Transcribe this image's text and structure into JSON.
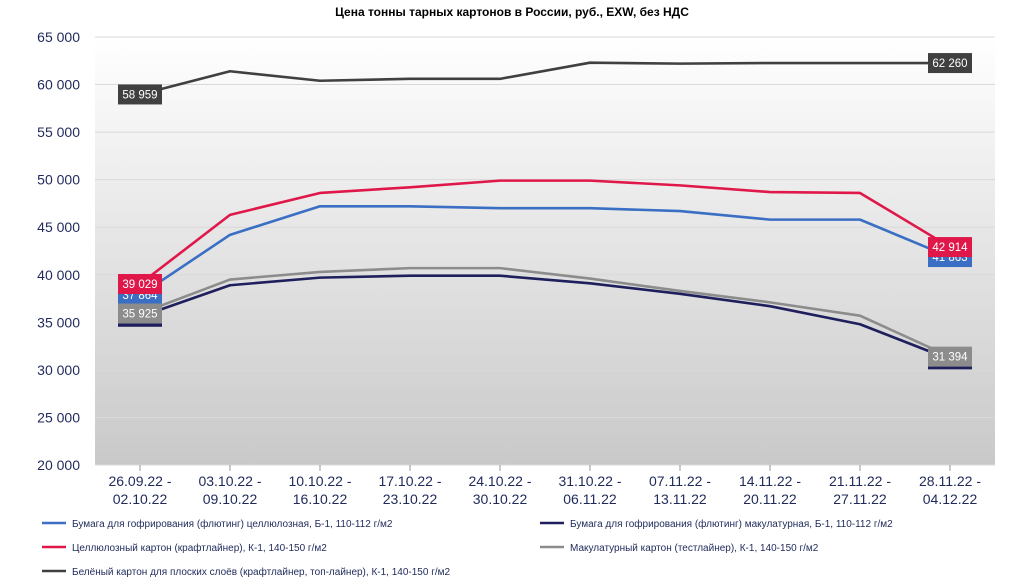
{
  "chart_data": {
    "type": "line",
    "title": "Цена тонны тарных картонов в России, руб., EXW, без НДС",
    "xlabel": "",
    "ylabel": "",
    "ylim": [
      20000,
      65000
    ],
    "yticks": [
      20000,
      25000,
      30000,
      35000,
      40000,
      45000,
      50000,
      55000,
      60000,
      65000
    ],
    "ytick_labels": [
      "20 000",
      "25 000",
      "30 000",
      "35 000",
      "40 000",
      "45 000",
      "50 000",
      "55 000",
      "60 000",
      "65 000"
    ],
    "grid": true,
    "legend_position": "bottom",
    "categories": [
      [
        "26.09.22 -",
        "02.10.22"
      ],
      [
        "03.10.22 -",
        "09.10.22"
      ],
      [
        "10.10.22 -",
        "16.10.22"
      ],
      [
        "17.10.22 -",
        "23.10.22"
      ],
      [
        "24.10.22 -",
        "30.10.22"
      ],
      [
        "31.10.22 -",
        "06.11.22"
      ],
      [
        "07.11.22 -",
        "13.11.22"
      ],
      [
        "14.11.22 -",
        "20.11.22"
      ],
      [
        "21.11.22 -",
        "27.11.22"
      ],
      [
        "28.11.22 -",
        "04.12.22"
      ]
    ],
    "series": [
      {
        "name": "Бумага для гофрирования (флютинг) целлюлозная, Б-1, 110-112 г/м2",
        "color": "#3a6fc4",
        "values": [
          37864,
          44200,
          47200,
          47200,
          47000,
          47000,
          46700,
          45800,
          45800,
          41863
        ],
        "first_label": "37 864",
        "last_label": "41 863"
      },
      {
        "name": "Бумага для гофрирования (флютинг) макулатурная, Б-1, 110-112 г/м2",
        "color": "#1f1f5e",
        "values": [
          35583,
          38900,
          39700,
          39900,
          39900,
          39100,
          38000,
          36700,
          34800,
          31106
        ],
        "first_label": "35 583",
        "last_label": "31 106"
      },
      {
        "name": "Целлюлозный картон (крафтлайнер), К-1, 140-150 г/м2",
        "color": "#e0184a",
        "values": [
          39029,
          46300,
          48600,
          49200,
          49900,
          49900,
          49400,
          48700,
          48600,
          42914
        ],
        "first_label": "39 029",
        "last_label": "42 914"
      },
      {
        "name": "Макулатурный картон (тестлайнер), К-1, 140-150 г/м2",
        "color": "#8c8c8c",
        "values": [
          35925,
          39500,
          40300,
          40700,
          40700,
          39600,
          38300,
          37100,
          35700,
          31394
        ],
        "first_label": "35 925",
        "last_label": "31 394"
      },
      {
        "name": "Белёный картон для плоских слоёв (крафтлайнер, топ-лайнер), К-1, 140-150 г/м2",
        "color": "#404040",
        "values": [
          58959,
          61400,
          60400,
          60600,
          60600,
          62300,
          62200,
          62260,
          62260,
          62260
        ],
        "first_label": "58 959",
        "last_label": "62 260"
      }
    ]
  }
}
